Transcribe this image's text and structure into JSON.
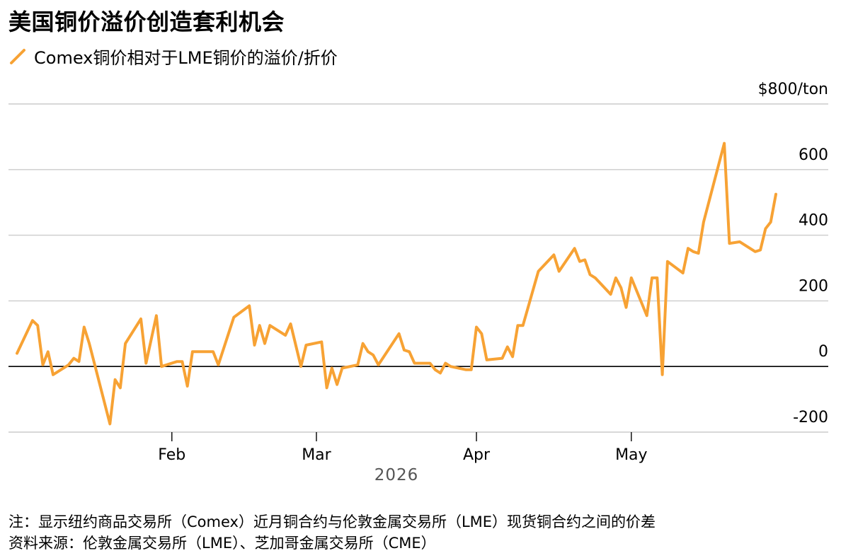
{
  "title": "美国铜价溢价创造套利机会",
  "legend": {
    "label": "Comex铜价相对于LME铜价的溢价/折价",
    "color": "#F7A234"
  },
  "footnotes": {
    "note": "注：显示纽约商品交易所（Comex）近月铜合约与伦敦金属交易所（LME）现货铜合约之间的价差",
    "source": "资料来源：伦敦金属交易所（LME）、芝加哥金属交易所（CME）"
  },
  "chart_data": {
    "type": "line",
    "y_unit_label": "$800/ton",
    "ylim": [
      -200,
      800
    ],
    "yticks": [
      {
        "value": 800,
        "label": "$800/ton"
      },
      {
        "value": 600,
        "label": "600"
      },
      {
        "value": 400,
        "label": "400"
      },
      {
        "value": 200,
        "label": "200"
      },
      {
        "value": 0,
        "label": "0"
      },
      {
        "value": -200,
        "label": "-200"
      }
    ],
    "xlim": [
      "2026-01-02",
      "2026-05-29"
    ],
    "xticks": [
      {
        "date": "2026-02-01",
        "label": "Feb"
      },
      {
        "date": "2026-03-01",
        "label": "Mar"
      },
      {
        "date": "2026-04-01",
        "label": "Apr"
      },
      {
        "date": "2026-05-01",
        "label": "May"
      }
    ],
    "xlabel": "2026",
    "grid": true,
    "series": [
      {
        "name": "Comex铜价相对于LME铜价的溢价/折价",
        "color": "#F7A234",
        "points": [
          [
            "2026-01-02",
            40
          ],
          [
            "2026-01-05",
            140
          ],
          [
            "2026-01-06",
            125
          ],
          [
            "2026-01-07",
            5
          ],
          [
            "2026-01-08",
            45
          ],
          [
            "2026-01-09",
            -25
          ],
          [
            "2026-01-12",
            5
          ],
          [
            "2026-01-13",
            25
          ],
          [
            "2026-01-14",
            15
          ],
          [
            "2026-01-15",
            120
          ],
          [
            "2026-01-16",
            70
          ],
          [
            "2026-01-20",
            -175
          ],
          [
            "2026-01-21",
            -40
          ],
          [
            "2026-01-22",
            -65
          ],
          [
            "2026-01-23",
            70
          ],
          [
            "2026-01-26",
            145
          ],
          [
            "2026-01-27",
            10
          ],
          [
            "2026-01-29",
            155
          ],
          [
            "2026-01-30",
            0
          ],
          [
            "2026-02-02",
            15
          ],
          [
            "2026-02-03",
            15
          ],
          [
            "2026-02-04",
            -60
          ],
          [
            "2026-02-05",
            45
          ],
          [
            "2026-02-06",
            45
          ],
          [
            "2026-02-09",
            45
          ],
          [
            "2026-02-10",
            5
          ],
          [
            "2026-02-13",
            150
          ],
          [
            "2026-02-16",
            185
          ],
          [
            "2026-02-17",
            65
          ],
          [
            "2026-02-18",
            125
          ],
          [
            "2026-02-19",
            70
          ],
          [
            "2026-02-20",
            125
          ],
          [
            "2026-02-23",
            95
          ],
          [
            "2026-02-24",
            130
          ],
          [
            "2026-02-26",
            0
          ],
          [
            "2026-02-27",
            65
          ],
          [
            "2026-03-02",
            75
          ],
          [
            "2026-03-03",
            -65
          ],
          [
            "2026-03-04",
            -5
          ],
          [
            "2026-03-05",
            -55
          ],
          [
            "2026-03-06",
            -5
          ],
          [
            "2026-03-09",
            5
          ],
          [
            "2026-03-10",
            70
          ],
          [
            "2026-03-11",
            45
          ],
          [
            "2026-03-12",
            35
          ],
          [
            "2026-03-13",
            5
          ],
          [
            "2026-03-17",
            100
          ],
          [
            "2026-03-18",
            50
          ],
          [
            "2026-03-19",
            45
          ],
          [
            "2026-03-20",
            10
          ],
          [
            "2026-03-23",
            10
          ],
          [
            "2026-03-24",
            -10
          ],
          [
            "2026-03-25",
            -20
          ],
          [
            "2026-03-26",
            10
          ],
          [
            "2026-03-27",
            0
          ],
          [
            "2026-03-30",
            -10
          ],
          [
            "2026-03-31",
            -10
          ],
          [
            "2026-04-01",
            120
          ],
          [
            "2026-04-02",
            100
          ],
          [
            "2026-04-03",
            20
          ],
          [
            "2026-04-06",
            25
          ],
          [
            "2026-04-07",
            60
          ],
          [
            "2026-04-08",
            30
          ],
          [
            "2026-04-09",
            125
          ],
          [
            "2026-04-10",
            125
          ],
          [
            "2026-04-13",
            290
          ],
          [
            "2026-04-16",
            340
          ],
          [
            "2026-04-17",
            290
          ],
          [
            "2026-04-20",
            360
          ],
          [
            "2026-04-21",
            320
          ],
          [
            "2026-04-22",
            325
          ],
          [
            "2026-04-23",
            280
          ],
          [
            "2026-04-24",
            270
          ],
          [
            "2026-04-27",
            220
          ],
          [
            "2026-04-28",
            270
          ],
          [
            "2026-04-29",
            240
          ],
          [
            "2026-04-30",
            180
          ],
          [
            "2026-05-01",
            270
          ],
          [
            "2026-05-04",
            155
          ],
          [
            "2026-05-05",
            270
          ],
          [
            "2026-05-06",
            270
          ],
          [
            "2026-05-07",
            -25
          ],
          [
            "2026-05-08",
            320
          ],
          [
            "2026-05-11",
            285
          ],
          [
            "2026-05-12",
            360
          ],
          [
            "2026-05-13",
            350
          ],
          [
            "2026-05-14",
            345
          ],
          [
            "2026-05-15",
            440
          ],
          [
            "2026-05-18",
            620
          ],
          [
            "2026-05-19",
            680
          ],
          [
            "2026-05-20",
            375
          ],
          [
            "2026-05-22",
            380
          ],
          [
            "2026-05-25",
            350
          ],
          [
            "2026-05-26",
            355
          ],
          [
            "2026-05-27",
            420
          ],
          [
            "2026-05-28",
            440
          ],
          [
            "2026-05-29",
            525
          ]
        ]
      }
    ]
  }
}
